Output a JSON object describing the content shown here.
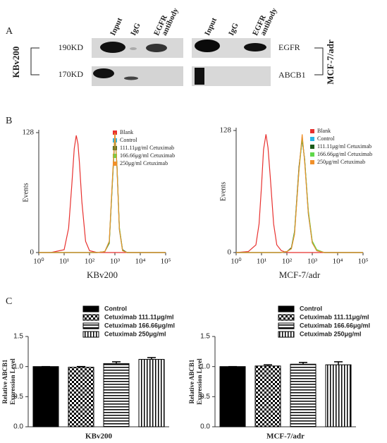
{
  "panel_labels": [
    "A",
    "B",
    "C"
  ],
  "blot": {
    "lanes": [
      [
        "Input"
      ],
      [
        "IgG"
      ],
      [
        "EGFR",
        "antibody"
      ]
    ],
    "left_markers": [
      "190KD",
      "170KD"
    ],
    "left_cell": "KBv200",
    "right_proteins": [
      "EGFR",
      "ABCB1"
    ],
    "right_cell": "MCF-7/adr"
  },
  "chart_data": [
    {
      "type": "line",
      "log_x": true,
      "xlabel": "KBv200",
      "ylabel": "Events",
      "xlim": [
        1,
        100000
      ],
      "xticks": [
        {
          "value": 1,
          "label": "10⁰"
        },
        {
          "value": 10,
          "label": "10¹"
        },
        {
          "value": 100,
          "label": "10²"
        },
        {
          "value": 1000,
          "label": "10³"
        },
        {
          "value": 10000,
          "label": "10⁴"
        },
        {
          "value": 100000,
          "label": "10⁵"
        }
      ],
      "ylim": [
        0,
        128
      ],
      "yticks": [
        0,
        128
      ],
      "legend": "upper right",
      "x": [
        1,
        3,
        10,
        15,
        20,
        25,
        30,
        35,
        40,
        50,
        70,
        100,
        200,
        400,
        600,
        800,
        1000,
        1200,
        1500,
        2000,
        3000,
        10000,
        100000
      ],
      "series": [
        {
          "name": "Blank",
          "color": "#e8312f",
          "values": [
            0,
            0,
            3,
            26,
            72,
            111,
            125,
            116,
            96,
            54,
            12,
            2,
            0,
            0,
            0,
            0,
            0,
            0,
            0,
            0,
            0,
            0,
            0
          ]
        },
        {
          "name": "Control",
          "color": "#29b6e8",
          "values": [
            0,
            0,
            0,
            0,
            0,
            0,
            0,
            0,
            0,
            0,
            0,
            0,
            0,
            1,
            12,
            78,
            126,
            92,
            24,
            2,
            0,
            0,
            0
          ]
        },
        {
          "name": "111.11μg/ml Cetuximab",
          "color": "#1a5a1a",
          "values": [
            0,
            0,
            0,
            0,
            0,
            0,
            0,
            0,
            0,
            0,
            0,
            0,
            0,
            1,
            10,
            75,
            124,
            95,
            26,
            3,
            0,
            0,
            0
          ]
        },
        {
          "name": "166.66μg/ml Cetuximab",
          "color": "#5fd84a",
          "values": [
            0,
            0,
            0,
            0,
            0,
            0,
            0,
            0,
            0,
            0,
            0,
            0,
            0,
            1,
            11,
            76,
            127,
            94,
            27,
            2,
            0,
            0,
            0
          ]
        },
        {
          "name": "250μg/ml Cetuximab",
          "color": "#f0902a",
          "values": [
            0,
            0,
            0,
            0,
            0,
            0,
            0,
            0,
            0,
            0,
            0,
            0,
            0,
            1,
            12,
            79,
            128,
            93,
            25,
            2,
            0,
            0,
            0
          ]
        }
      ]
    },
    {
      "type": "line",
      "log_x": true,
      "xlabel": "MCF-7/adr",
      "ylabel": "Events",
      "xlim": [
        1,
        100000
      ],
      "xticks": [
        {
          "value": 1,
          "label": "10⁰"
        },
        {
          "value": 10,
          "label": "10¹"
        },
        {
          "value": 100,
          "label": "10²"
        },
        {
          "value": 1000,
          "label": "10³"
        },
        {
          "value": 10000,
          "label": "10⁴"
        },
        {
          "value": 100000,
          "label": "10⁵"
        }
      ],
      "ylim": [
        0,
        128
      ],
      "yticks": [
        0,
        128
      ],
      "legend": "upper right",
      "x": [
        1,
        3,
        6,
        8,
        10,
        12,
        15,
        18,
        22,
        30,
        40,
        60,
        100,
        150,
        200,
        300,
        400,
        500,
        700,
        1000,
        1500,
        3000,
        100000
      ],
      "series": [
        {
          "name": "Blank",
          "color": "#e8312f",
          "values": [
            0,
            1,
            8,
            30,
            70,
            108,
            124,
            110,
            80,
            30,
            8,
            2,
            0,
            0,
            0,
            0,
            0,
            0,
            0,
            0,
            0,
            0,
            0
          ]
        },
        {
          "name": "Control",
          "color": "#29b6e8",
          "values": [
            0,
            0,
            0,
            0,
            0,
            0,
            0,
            0,
            0,
            0,
            0,
            0,
            1,
            4,
            20,
            88,
            122,
            96,
            40,
            10,
            2,
            0,
            0
          ]
        },
        {
          "name": "111.11μg/ml Cetuximab",
          "color": "#1a5a1a",
          "values": [
            0,
            0,
            0,
            0,
            0,
            0,
            0,
            0,
            0,
            0,
            0,
            0,
            1,
            5,
            22,
            90,
            118,
            98,
            42,
            11,
            2,
            0,
            0
          ]
        },
        {
          "name": "166.66μg/ml Cetuximab",
          "color": "#5fd84a",
          "values": [
            0,
            0,
            0,
            0,
            0,
            0,
            0,
            0,
            0,
            0,
            0,
            0,
            1,
            4,
            21,
            86,
            120,
            97,
            44,
            12,
            3,
            0,
            0
          ]
        },
        {
          "name": "250μg/ml Cetuximab",
          "color": "#f0902a",
          "values": [
            0,
            0,
            0,
            0,
            0,
            0,
            0,
            0,
            0,
            0,
            0,
            0,
            1,
            4,
            19,
            87,
            124,
            95,
            41,
            10,
            2,
            0,
            0
          ]
        }
      ]
    },
    {
      "type": "bar",
      "xlabel": "KBv200",
      "ylabel": [
        "Relative ABCB1",
        "Expression Level"
      ],
      "ylim": [
        0,
        1.5
      ],
      "yticks": [
        {
          "value": 0,
          "label": "0.0"
        },
        {
          "value": 0.5,
          "label": "0.5"
        },
        {
          "value": 1,
          "label": "1.0"
        },
        {
          "value": 1.5,
          "label": "1.5"
        }
      ],
      "legend": "upper right",
      "series": [
        {
          "name": "Control",
          "pattern": "solid",
          "values": [
            1.0
          ],
          "errors": [
            0
          ]
        },
        {
          "name": "Cetuximab 111.11μg/ml",
          "pattern": "checker",
          "values": [
            0.99
          ],
          "errors": [
            0.01
          ]
        },
        {
          "name": "Cetuximab 166.66μg/ml",
          "pattern": "hstripe",
          "values": [
            1.05
          ],
          "errors": [
            0.03
          ]
        },
        {
          "name": "Cetuximab 250μg/ml",
          "pattern": "vstripe",
          "values": [
            1.12
          ],
          "errors": [
            0.03
          ]
        }
      ]
    },
    {
      "type": "bar",
      "xlabel": "MCF-7/adr",
      "ylabel": [
        "Relative ABCB1",
        "Expression Level"
      ],
      "ylim": [
        0,
        1.5
      ],
      "yticks": [
        {
          "value": 0,
          "label": "0.0"
        },
        {
          "value": 0.5,
          "label": "0.5"
        },
        {
          "value": 1,
          "label": "1.0"
        },
        {
          "value": 1.5,
          "label": "1.5"
        }
      ],
      "legend": "upper right",
      "series": [
        {
          "name": "Control",
          "pattern": "solid",
          "values": [
            1.0
          ],
          "errors": [
            0
          ]
        },
        {
          "name": "Cetuximab 111.11μg/ml",
          "pattern": "checker",
          "values": [
            1.01
          ],
          "errors": [
            0.02
          ]
        },
        {
          "name": "Cetuximab 166.66μg/ml",
          "pattern": "hstripe",
          "values": [
            1.04
          ],
          "errors": [
            0.03
          ]
        },
        {
          "name": "Cetuximab 250μg/ml",
          "pattern": "vstripe",
          "values": [
            1.03
          ],
          "errors": [
            0.05
          ]
        }
      ]
    }
  ]
}
